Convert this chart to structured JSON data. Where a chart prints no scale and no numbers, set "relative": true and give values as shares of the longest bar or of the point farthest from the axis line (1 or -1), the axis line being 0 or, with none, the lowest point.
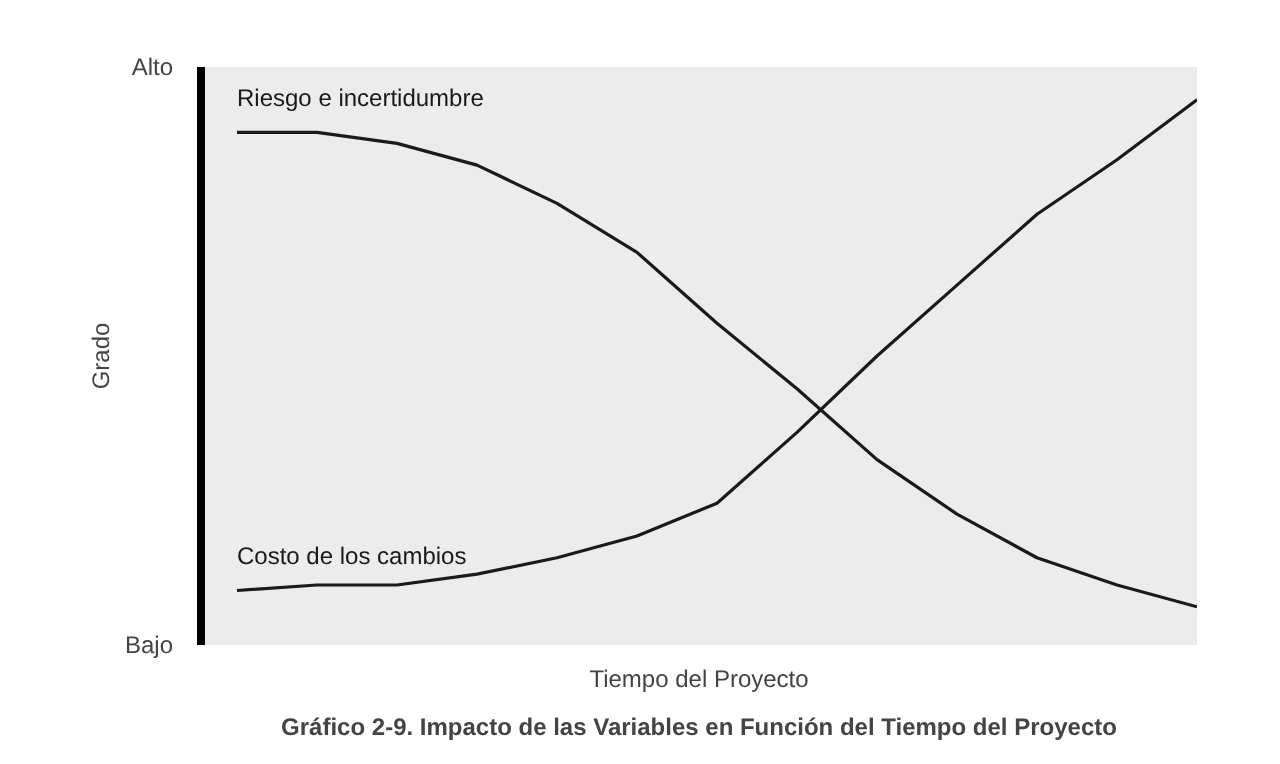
{
  "chart_data": {
    "type": "line",
    "relative": true,
    "title": "Gráfico 2-9. Impacto de las Variables en Función del Tiempo del Proyecto",
    "xlabel": "Tiempo del Proyecto",
    "ylabel": "Grado",
    "annotations": [
      "Alto",
      "Bajo"
    ],
    "categories": [
      null,
      null,
      null,
      null,
      null,
      null,
      null,
      null,
      null,
      null,
      null,
      null,
      null
    ],
    "series": [
      {
        "name": "Riesgo e incertidumbre",
        "color": "#1a1a1a",
        "values": [
          0.94,
          0.94,
          0.92,
          0.88,
          0.81,
          0.72,
          0.59,
          0.47,
          0.34,
          0.24,
          0.16,
          0.11,
          0.07
        ]
      },
      {
        "name": "Costo de los cambios",
        "color": "#1a1a1a",
        "values": [
          0.1,
          0.11,
          0.11,
          0.13,
          0.16,
          0.2,
          0.26,
          0.39,
          0.53,
          0.66,
          0.79,
          0.89,
          1.0
        ]
      }
    ]
  }
}
